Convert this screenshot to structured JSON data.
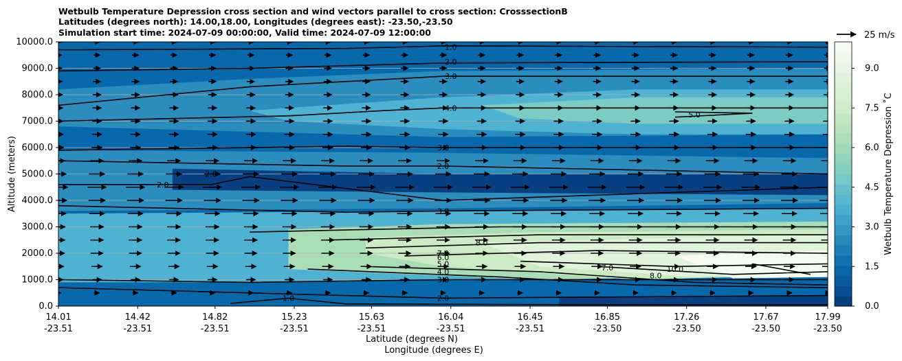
{
  "chart_data": {
    "type": "contour",
    "title_lines": [
      "Wetbulb Temperature Depression cross section and wind vectors parallel to cross section: CrosssectionB",
      "Latitudes (degrees north): 14.00,18.00, Longitudes (degrees east): -23.50,-23.50",
      "Simulation start time: 2024-07-09 00:00:00, Valid time: 2024-07-09 12:00:00"
    ],
    "xlabel": "Latitude (degrees N)",
    "xlabel2": "Longitude (degrees E)",
    "ylabel": "Altitude (meters)",
    "xlim": [
      14.01,
      17.99
    ],
    "ylim": [
      0,
      10000
    ],
    "x_ticks": [
      {
        "lat": "14.01",
        "lon": "-23.51",
        "value": 14.01
      },
      {
        "lat": "14.42",
        "lon": "-23.51",
        "value": 14.42
      },
      {
        "lat": "14.82",
        "lon": "-23.51",
        "value": 14.82
      },
      {
        "lat": "15.23",
        "lon": "-23.51",
        "value": 15.23
      },
      {
        "lat": "15.63",
        "lon": "-23.51",
        "value": 15.63
      },
      {
        "lat": "16.04",
        "lon": "-23.51",
        "value": 16.04
      },
      {
        "lat": "16.45",
        "lon": "-23.51",
        "value": 16.45
      },
      {
        "lat": "16.85",
        "lon": "-23.50",
        "value": 16.85
      },
      {
        "lat": "17.26",
        "lon": "-23.50",
        "value": 17.26
      },
      {
        "lat": "17.67",
        "lon": "-23.50",
        "value": 17.67
      },
      {
        "lat": "17.99",
        "lon": "-23.50",
        "value": 17.99
      }
    ],
    "y_ticks": [
      "0.0",
      "1000.0",
      "2000.0",
      "3000.0",
      "4000.0",
      "5000.0",
      "6000.0",
      "7000.0",
      "8000.0",
      "9000.0",
      "10000.0"
    ],
    "colorbar": {
      "label": "Wetbulb Temperature Depression $^\\circ$C",
      "label_text": "Wetbulb Temperature Depression ˚C",
      "range": [
        0,
        10
      ],
      "tick_labels": [
        "0.0",
        "1.5",
        "3.0",
        "4.5",
        "6.0",
        "7.5",
        "9.0"
      ],
      "colors": [
        "#084081",
        "#0868ac",
        "#2b8cbe",
        "#4eb3d3",
        "#7bccc4",
        "#a8ddb5",
        "#ccebc5",
        "#e0f3db",
        "#f7fcf0"
      ]
    },
    "contour_levels": [
      {
        "level": 1.0,
        "labels": [
          "1.0"
        ],
        "approx_altitude_m": [
          9800,
          300,
          50
        ]
      },
      {
        "level": 2.0,
        "labels": [
          "2.0",
          "2.0",
          "2.0",
          "2.0"
        ],
        "approx_altitude_m": [
          9250,
          5300,
          300
        ]
      },
      {
        "level": 3.0,
        "labels": [
          "3.0",
          "3.0",
          "3.0",
          "3.0"
        ],
        "approx_altitude_m": [
          8700,
          6000,
          3600,
          1000
        ]
      },
      {
        "level": 4.0,
        "labels": [
          "4.0",
          "4.0"
        ],
        "approx_altitude_m": [
          7500,
          1300
        ]
      },
      {
        "level": 5.0,
        "labels": [
          "5.0",
          "5.0"
        ],
        "approx_altitude_m": [
          7300,
          1600
        ]
      },
      {
        "level": 6.0,
        "labels": [
          "6.0"
        ],
        "approx_altitude_m": [
          1800
        ]
      },
      {
        "level": 7.0,
        "labels": [
          "7.0",
          "7.0"
        ],
        "approx_altitude_m": [
          2000
        ]
      },
      {
        "level": 8.0,
        "labels": [
          "8.0",
          "8.0"
        ],
        "approx_altitude_m": [
          2300,
          1200
        ]
      },
      {
        "level": 10.0,
        "labels": [
          "10.0"
        ],
        "approx_altitude_m": [
          1200
        ]
      }
    ],
    "wind_vectors": {
      "reference_label": "25 m/s",
      "reference_speed_ms": 25,
      "direction": "northward (left to right along cross section)",
      "profile": [
        {
          "altitude_m": 500,
          "speed_ms": 5
        },
        {
          "altitude_m": 1000,
          "speed_ms": 9
        },
        {
          "altitude_m": 2000,
          "speed_ms": 12
        },
        {
          "altitude_m": 3000,
          "speed_ms": 13
        },
        {
          "altitude_m": 4000,
          "speed_ms": 16
        },
        {
          "altitude_m": 4500,
          "speed_ms": 18
        },
        {
          "altitude_m": 5000,
          "speed_ms": 15
        },
        {
          "altitude_m": 6000,
          "speed_ms": 10
        },
        {
          "altitude_m": 7000,
          "speed_ms": 9
        },
        {
          "altitude_m": 8000,
          "speed_ms": 8
        },
        {
          "altitude_m": 9000,
          "speed_ms": 7
        },
        {
          "altitude_m": 10000,
          "speed_ms": 6
        }
      ]
    }
  }
}
